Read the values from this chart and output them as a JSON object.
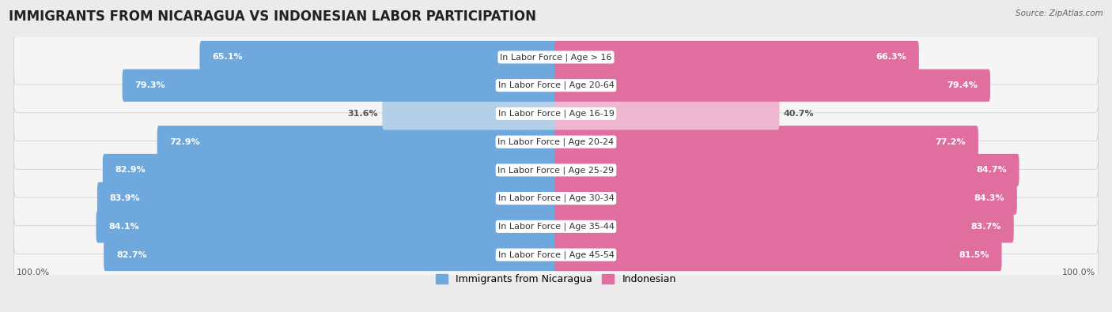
{
  "title": "IMMIGRANTS FROM NICARAGUA VS INDONESIAN LABOR PARTICIPATION",
  "source": "Source: ZipAtlas.com",
  "categories": [
    "In Labor Force | Age > 16",
    "In Labor Force | Age 20-64",
    "In Labor Force | Age 16-19",
    "In Labor Force | Age 20-24",
    "In Labor Force | Age 25-29",
    "In Labor Force | Age 30-34",
    "In Labor Force | Age 35-44",
    "In Labor Force | Age 45-54"
  ],
  "nicaragua_values": [
    65.1,
    79.3,
    31.6,
    72.9,
    82.9,
    83.9,
    84.1,
    82.7
  ],
  "indonesian_values": [
    66.3,
    79.4,
    40.7,
    77.2,
    84.7,
    84.3,
    83.7,
    81.5
  ],
  "nicaragua_color": "#6fa8dc",
  "nicaragua_color_light": "#b4cfe8",
  "indonesian_color": "#e06fa0",
  "indonesian_color_light": "#f0b8d0",
  "bg_color": "#ebebeb",
  "row_bg_color": "#f5f5f5",
  "title_fontsize": 12,
  "label_fontsize": 8,
  "value_fontsize": 8,
  "max_value": 100.0,
  "legend_nicaragua": "Immigrants from Nicaragua",
  "legend_indonesian": "Indonesian"
}
